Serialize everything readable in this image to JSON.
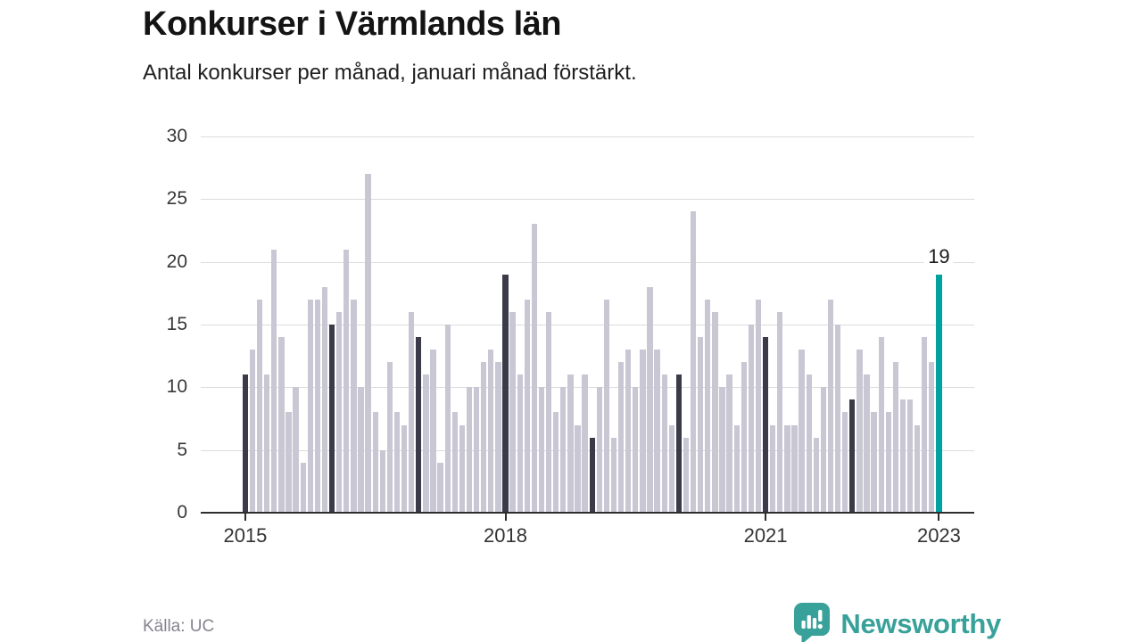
{
  "header": {
    "title": "Konkurser i Värmlands län",
    "subtitle": "Antal konkurser per månad, januari månad förstärkt."
  },
  "footer": {
    "source": "Källa: UC",
    "brand": "Newsworthy"
  },
  "chart_data": {
    "type": "bar",
    "title": "Konkurser i Värmlands län",
    "subtitle": "Antal konkurser per månad, januari månad förstärkt.",
    "xlabel": "",
    "ylabel": "",
    "ylim": [
      0,
      30
    ],
    "yticks": [
      0,
      5,
      10,
      15,
      20,
      25,
      30
    ],
    "grid": "horizontal",
    "legend": "none",
    "unit": "konkurser per månad",
    "start_month": "2015-01",
    "end_month": "2023-01",
    "series": [
      {
        "name": "2015",
        "values": [
          11,
          13,
          17,
          11,
          21,
          14,
          8,
          10,
          4,
          17,
          17,
          18
        ]
      },
      {
        "name": "2016",
        "values": [
          15,
          16,
          21,
          17,
          10,
          27,
          8,
          5,
          12,
          8,
          7,
          16
        ]
      },
      {
        "name": "2017",
        "values": [
          14,
          11,
          13,
          4,
          15,
          8,
          7,
          10,
          10,
          12,
          13,
          12
        ]
      },
      {
        "name": "2018",
        "values": [
          19,
          16,
          11,
          17,
          23,
          10,
          16,
          8,
          10,
          11,
          7,
          11
        ]
      },
      {
        "name": "2019",
        "values": [
          6,
          10,
          17,
          6,
          12,
          13,
          10,
          13,
          18,
          13,
          11,
          7
        ]
      },
      {
        "name": "2020",
        "values": [
          11,
          6,
          24,
          14,
          17,
          16,
          10,
          11,
          7,
          12,
          15,
          17
        ]
      },
      {
        "name": "2021",
        "values": [
          14,
          7,
          16,
          7,
          7,
          13,
          11,
          6,
          10,
          17,
          15,
          8
        ]
      },
      {
        "name": "2022",
        "values": [
          9,
          13,
          11,
          8,
          14,
          8,
          12,
          9,
          9,
          7,
          14,
          12
        ]
      },
      {
        "name": "2023",
        "values": [
          19
        ]
      }
    ],
    "xticks": [
      {
        "label": "2015",
        "month_index": 0
      },
      {
        "label": "2018",
        "month_index": 36
      },
      {
        "label": "2021",
        "month_index": 72
      },
      {
        "label": "2023",
        "month_index": 96
      }
    ],
    "annotation": {
      "text": "19",
      "month_index": 96
    },
    "colors": {
      "bar_default": "#c9c7d3",
      "bar_january": "#3a3a49",
      "bar_highlight": "#00a2a1",
      "gridline": "#dcdcdc",
      "axis": "#2e2e2e"
    },
    "highlight_rule": "January bars dark; latest bar (Jan 2023) teal with value label"
  }
}
